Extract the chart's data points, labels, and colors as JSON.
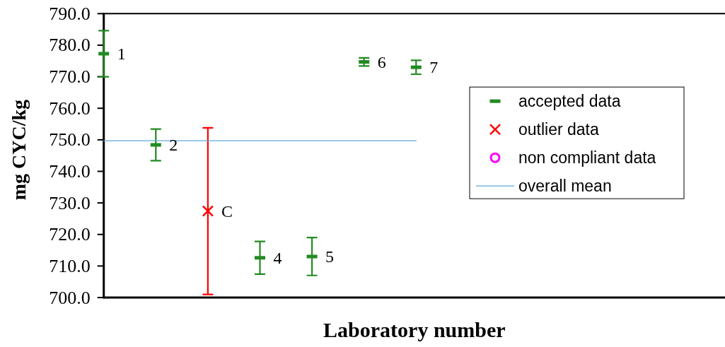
{
  "chart_data": {
    "type": "scatter",
    "xlabel": "Laboratory number",
    "ylabel": "mg CYC/kg",
    "categories": [
      "1",
      "2",
      "C",
      "4",
      "5",
      "6",
      "7"
    ],
    "ylim": [
      700,
      790
    ],
    "yticks": [
      {
        "value": 700,
        "label": "700.0"
      },
      {
        "value": 710,
        "label": "710.0"
      },
      {
        "value": 720,
        "label": "720.0"
      },
      {
        "value": 730,
        "label": "730.0"
      },
      {
        "value": 740,
        "label": "740.0"
      },
      {
        "value": 750,
        "label": "750.0"
      },
      {
        "value": 760,
        "label": "760.0"
      },
      {
        "value": 770,
        "label": "770.0"
      },
      {
        "value": 780,
        "label": "780.0"
      },
      {
        "value": 790,
        "label": "790.0"
      }
    ],
    "legend": "right",
    "series": [
      {
        "name": "accepted data",
        "color": "#228b22",
        "marker": "square",
        "values": [
          777.3,
          748.4,
          null,
          712.6,
          713.0,
          774.7,
          773.0
        ],
        "errors": [
          7.3,
          5.0,
          null,
          5.2,
          6.0,
          1.3,
          2.2
        ]
      },
      {
        "name": "outlier data",
        "color": "#ff0000",
        "marker": "cross",
        "values": [
          null,
          null,
          727.4,
          null,
          null,
          null,
          null
        ],
        "errors": [
          null,
          null,
          26.4,
          null,
          null,
          null,
          null
        ]
      },
      {
        "name": "non compliant data",
        "color": "#ff00ff",
        "marker": "circle",
        "values": [
          null,
          null,
          null,
          null,
          null,
          null,
          null
        ]
      },
      {
        "name": "overall mean",
        "type": "line",
        "color": "#5fa8d8",
        "marker": "none",
        "values": [
          749.7,
          749.7,
          749.7,
          749.7,
          749.7,
          749.7,
          749.7
        ]
      }
    ]
  }
}
